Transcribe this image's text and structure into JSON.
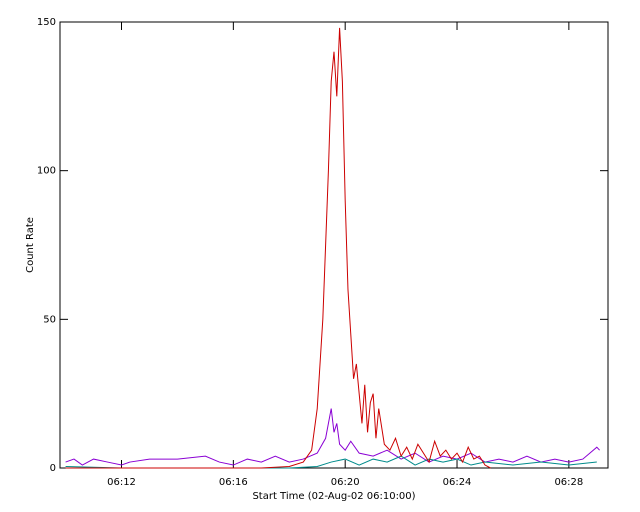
{
  "chart_data": {
    "type": "line",
    "ylabel": "Count Rate",
    "xlabel": "Start Time (02-Aug-02 06:10:00)",
    "xlim": [
      -0.2,
      19.4
    ],
    "ylim": [
      0,
      150
    ],
    "xticks": [
      {
        "value": 2,
        "label": "06:12"
      },
      {
        "value": 6,
        "label": "06:16"
      },
      {
        "value": 10,
        "label": "06:20"
      },
      {
        "value": 14,
        "label": "06:24"
      },
      {
        "value": 18,
        "label": "06:28"
      }
    ],
    "yticks": [
      0,
      50,
      100,
      150
    ],
    "series": [
      {
        "color": "#8a00d4",
        "x": [
          0,
          0.3,
          0.6,
          1,
          1.5,
          2,
          2.3,
          3,
          4,
          5,
          5.5,
          6,
          6.5,
          7,
          7.5,
          8,
          8.5,
          9,
          9.3,
          9.5,
          9.6,
          9.7,
          9.8,
          10,
          10.2,
          10.5,
          11,
          11.5,
          12,
          12.5,
          13,
          13.5,
          14,
          14.5,
          15,
          15.5,
          16,
          16.5,
          17,
          17.5,
          18,
          18.5,
          19,
          19.1
        ],
        "values": [
          2,
          3,
          1,
          3,
          2,
          1,
          2,
          3,
          3,
          4,
          2,
          1,
          3,
          2,
          4,
          2,
          3,
          5,
          10,
          20,
          12,
          15,
          8,
          6,
          9,
          5,
          4,
          6,
          3,
          5,
          2,
          4,
          3,
          5,
          2,
          3,
          2,
          4,
          2,
          3,
          2,
          3,
          7,
          6
        ]
      },
      {
        "color": "#008b8b",
        "x": [
          0,
          2,
          4,
          6,
          8,
          9,
          9.5,
          10,
          10.5,
          11,
          11.5,
          12,
          12.5,
          13,
          13.5,
          14,
          14.5,
          15,
          16,
          17,
          18,
          19
        ],
        "values": [
          0.5,
          0,
          0,
          0,
          0,
          0.5,
          2,
          3,
          1,
          3,
          2,
          4,
          1,
          3,
          2,
          3,
          1,
          2,
          1,
          2,
          1,
          2
        ]
      },
      {
        "color": "#cc0000",
        "x": [
          0,
          1,
          2,
          3,
          4,
          5,
          6,
          7,
          8,
          8.5,
          8.8,
          9,
          9.2,
          9.4,
          9.5,
          9.6,
          9.7,
          9.8,
          9.9,
          10,
          10.1,
          10.2,
          10.3,
          10.4,
          10.5,
          10.6,
          10.7,
          10.8,
          10.9,
          11,
          11.1,
          11.2,
          11.4,
          11.6,
          11.8,
          12,
          12.2,
          12.4,
          12.6,
          12.8,
          13,
          13.2,
          13.4,
          13.6,
          13.8,
          14,
          14.2,
          14.4,
          14.6,
          14.8,
          15,
          15.2
        ],
        "values": [
          0,
          0,
          0,
          0,
          0,
          0,
          0,
          0,
          0.5,
          2,
          6,
          20,
          50,
          100,
          130,
          140,
          125,
          148,
          130,
          90,
          60,
          45,
          30,
          35,
          25,
          15,
          28,
          12,
          22,
          25,
          10,
          20,
          8,
          6,
          10,
          4,
          7,
          3,
          8,
          5,
          2,
          9,
          4,
          6,
          3,
          5,
          2,
          7,
          3,
          4,
          1,
          0
        ]
      }
    ]
  }
}
